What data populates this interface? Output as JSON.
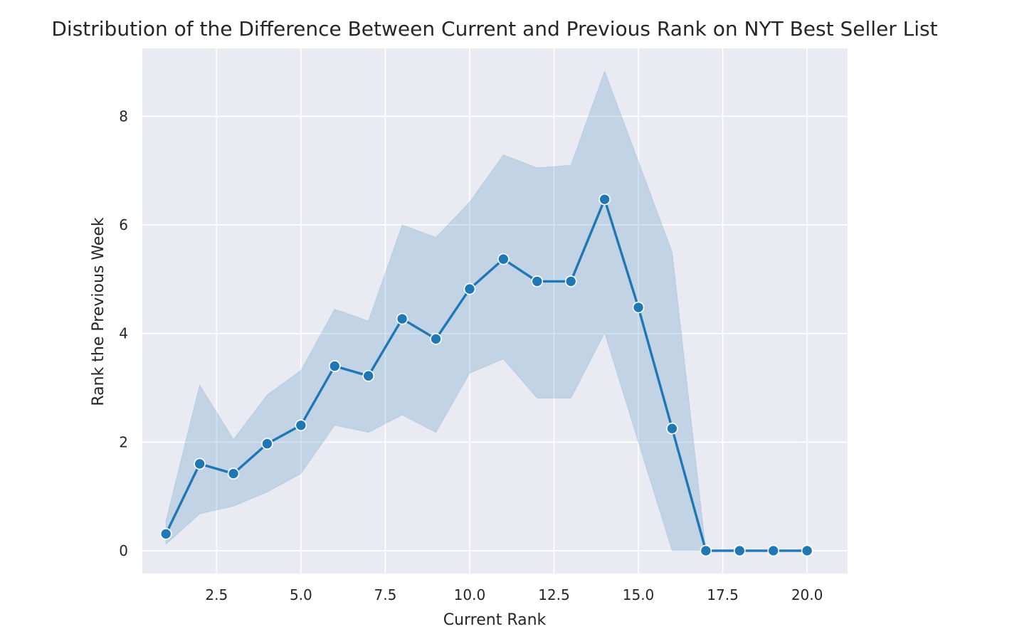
{
  "chart_data": {
    "type": "line",
    "title": "Distribution of the Difference Between Current and Previous Rank on NYT Best Seller List",
    "xlabel": "Current Rank",
    "ylabel": "Rank the Previous Week",
    "xlim": [
      0.3,
      21.2
    ],
    "ylim": [
      -0.42,
      9.25
    ],
    "xticks": [
      2.5,
      5.0,
      7.5,
      10.0,
      12.5,
      15.0,
      17.5,
      20.0
    ],
    "xtick_labels": [
      "2.5",
      "5.0",
      "7.5",
      "10.0",
      "12.5",
      "15.0",
      "17.5",
      "20.0"
    ],
    "yticks": [
      0,
      2,
      4,
      6,
      8
    ],
    "ytick_labels": [
      "0",
      "2",
      "4",
      "6",
      "8"
    ],
    "grid": true,
    "style": {
      "background": "#eaeaf2",
      "grid_color": "#ffffff",
      "line_color": "#1f77b4",
      "band_color": "#1f77b4",
      "band_opacity": 0.2
    },
    "series": [
      {
        "marker": "circle",
        "x": [
          1,
          2,
          3,
          4,
          5,
          6,
          7,
          8,
          9,
          10,
          11,
          12,
          13,
          14,
          15,
          16,
          17,
          18,
          19,
          20
        ],
        "y": [
          0.31,
          1.6,
          1.42,
          1.97,
          2.31,
          3.4,
          3.22,
          4.27,
          3.9,
          4.82,
          5.37,
          4.96,
          4.96,
          6.47,
          4.48,
          2.25,
          0,
          0,
          0,
          0
        ],
        "ci_lower": [
          0.12,
          0.68,
          0.82,
          1.08,
          1.42,
          2.31,
          2.18,
          2.5,
          2.18,
          3.27,
          3.53,
          2.81,
          2.81,
          4.01,
          2.0,
          0,
          0,
          0,
          0,
          0
        ],
        "ci_upper": [
          0.55,
          3.05,
          2.05,
          2.87,
          3.32,
          4.45,
          4.23,
          6.0,
          5.77,
          6.42,
          7.29,
          7.05,
          7.1,
          8.83,
          7.17,
          5.5,
          0,
          0,
          0,
          0
        ]
      }
    ]
  }
}
